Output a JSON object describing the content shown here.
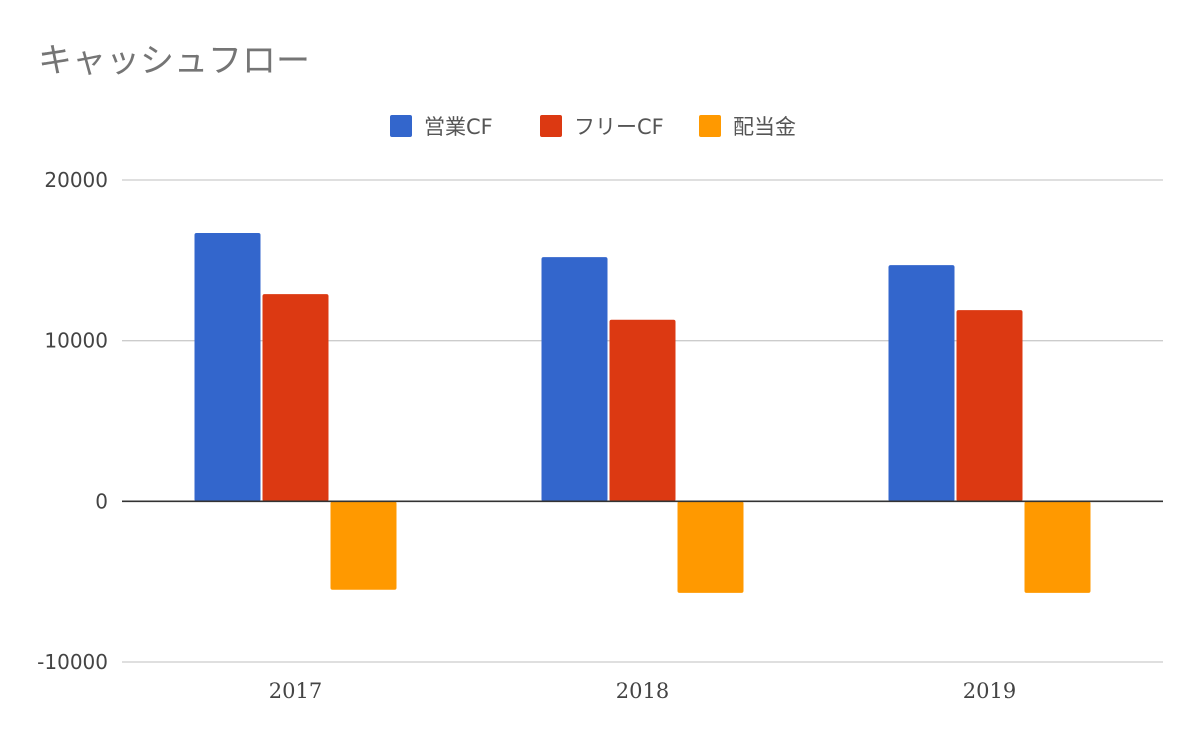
{
  "chart_data": {
    "type": "bar",
    "title": "キャッシュフロー",
    "categories": [
      "2017",
      "2018",
      "2019"
    ],
    "series": [
      {
        "name": "営業CF",
        "color": "#3366cc",
        "values": [
          16700,
          15200,
          14700
        ]
      },
      {
        "name": "フリーCF",
        "color": "#dc3912",
        "values": [
          12900,
          11300,
          11900
        ]
      },
      {
        "name": "配当金",
        "color": "#ff9900",
        "values": [
          -5500,
          -5700,
          -5700
        ]
      }
    ],
    "ylim": [
      -10000,
      20000
    ],
    "yticks": [
      "20000",
      "10000",
      "0",
      "-10000"
    ],
    "ytick_values": [
      20000,
      10000,
      0,
      -10000
    ],
    "grid": true,
    "legend_position": "top",
    "gridline_color": "#cccccc",
    "zero_line_color": "#333333"
  }
}
